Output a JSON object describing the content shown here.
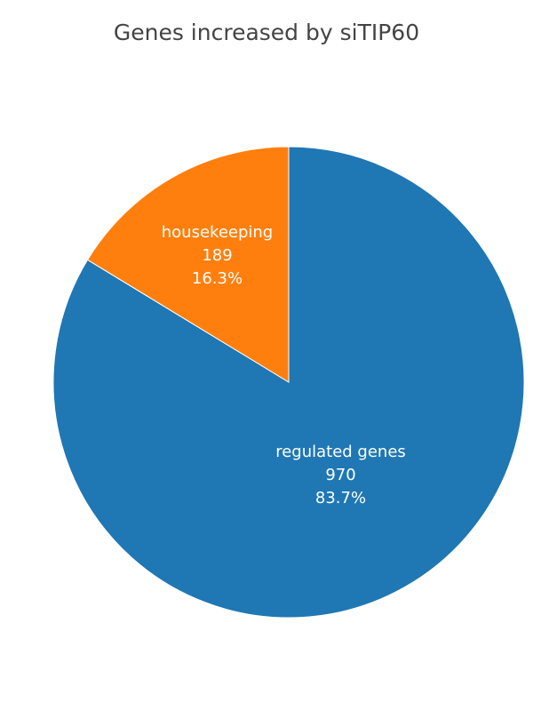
{
  "chart_data": {
    "type": "pie",
    "title": "Genes increased by siTIP60",
    "slices": [
      {
        "label": "regulated genes",
        "value": 970,
        "percent_text": "83.7%",
        "color": "#1f77b4"
      },
      {
        "label": "housekeeping",
        "value": 189,
        "percent_text": "16.3%",
        "color": "#ff7f0e"
      }
    ],
    "start": "12 o'clock",
    "direction": "clockwise",
    "slice_border_color": "#ffffff"
  }
}
